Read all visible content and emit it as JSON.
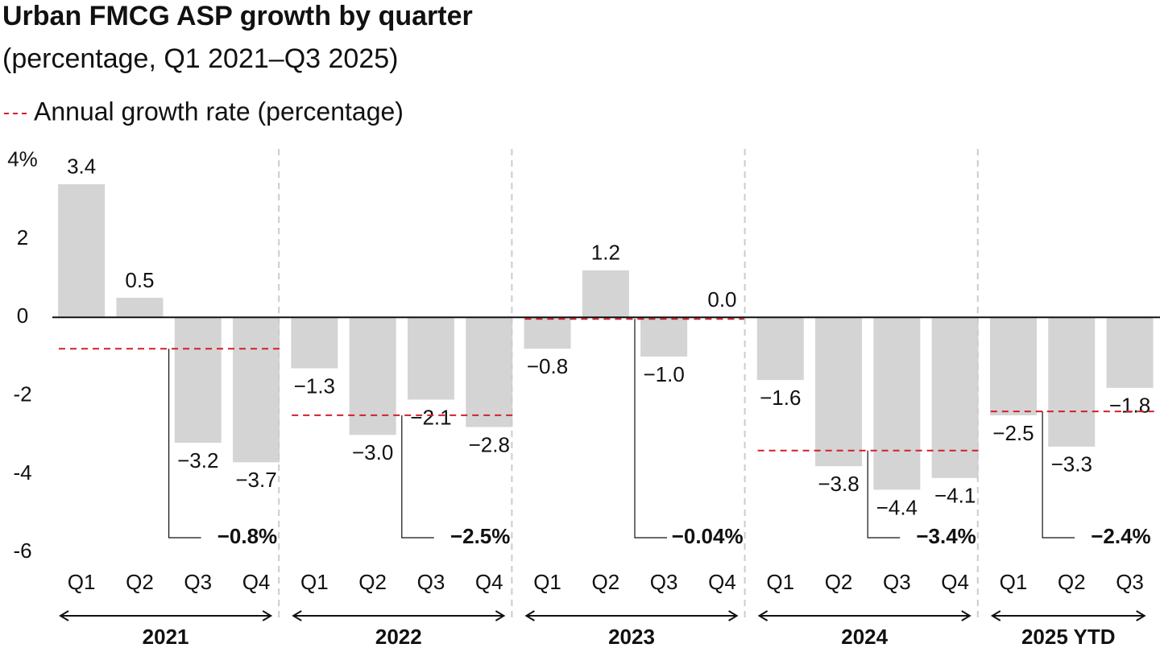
{
  "chart_data": {
    "type": "bar",
    "title": "Urban FMCG ASP growth by quarter",
    "subtitle": "(percentage, Q1 2021–Q3 2025)",
    "legend": "Annual growth rate (percentage)",
    "color": "#d4d4d4",
    "annual_color": "#d0202b",
    "ylim": [
      -6.2,
      4.3
    ],
    "yticks": [
      {
        "value": 4,
        "label": "4%"
      },
      2,
      0,
      -2,
      -4,
      -6
    ],
    "groups": [
      {
        "name": "2021",
        "categories": [
          "Q1",
          "Q2",
          "Q3",
          "Q4"
        ],
        "values": [
          3.4,
          0.5,
          -3.2,
          -3.7
        ],
        "value_labels": [
          "3.4",
          "0.5",
          "−3.2",
          "−3.7"
        ],
        "annual_rate": -0.8,
        "annual_rate_label": "−0.8%"
      },
      {
        "name": "2022",
        "categories": [
          "Q1",
          "Q2",
          "Q3",
          "Q4"
        ],
        "values": [
          -1.3,
          -3.0,
          -2.1,
          -2.8
        ],
        "value_labels": [
          "−1.3",
          "−3.0",
          "−2.1",
          "−2.8"
        ],
        "annual_rate": -2.5,
        "annual_rate_label": "−2.5%"
      },
      {
        "name": "2023",
        "categories": [
          "Q1",
          "Q2",
          "Q3",
          "Q4"
        ],
        "values": [
          -0.8,
          1.2,
          -1.0,
          0.0
        ],
        "value_labels": [
          "−0.8",
          "1.2",
          "−1.0",
          "0.0"
        ],
        "annual_rate": -0.04,
        "annual_rate_label": "−0.04%"
      },
      {
        "name": "2024",
        "categories": [
          "Q1",
          "Q2",
          "Q3",
          "Q4"
        ],
        "values": [
          -1.6,
          -3.8,
          -4.4,
          -4.1
        ],
        "value_labels": [
          "−1.6",
          "−3.8",
          "−4.4",
          "−4.1"
        ],
        "annual_rate": -3.4,
        "annual_rate_label": "−3.4%"
      },
      {
        "name": "2025 YTD",
        "categories": [
          "Q1",
          "Q2",
          "Q3"
        ],
        "values": [
          -2.5,
          -3.3,
          -1.8
        ],
        "value_labels": [
          "−2.5",
          "−3.3",
          "−1.8"
        ],
        "annual_rate": -2.4,
        "annual_rate_label": "−2.4%"
      }
    ]
  }
}
